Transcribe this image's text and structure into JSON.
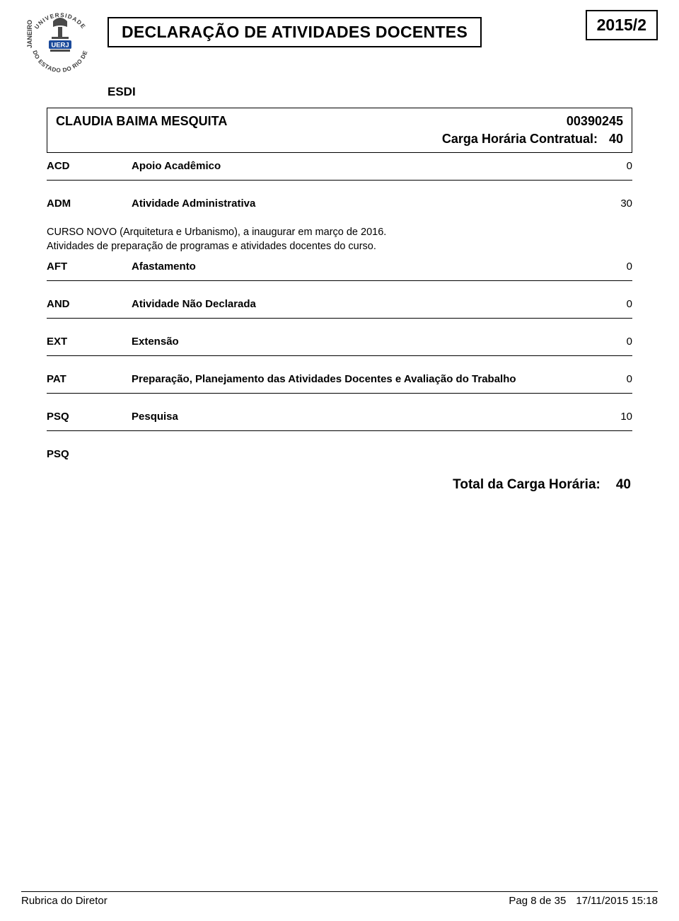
{
  "header": {
    "title": "DECLARAÇÃO DE ATIVIDADES DOCENTES",
    "period": "2015/2",
    "department": "ESDI",
    "logo_text_top": "UERJ",
    "logo_circ_text": "UNIVERSIDADE DO ESTADO DO RIO DE JANEIRO"
  },
  "person": {
    "name": "CLAUDIA BAIMA MESQUITA",
    "id": "00390245",
    "carga_label": "Carga Horária Contratual:",
    "carga_value": "40"
  },
  "categories": [
    {
      "code": "ACD",
      "label": "Apoio Acadêmico",
      "value": "0"
    },
    {
      "code": "ADM",
      "label": "Atividade Administrativa",
      "value": "30",
      "desc": "CURSO NOVO (Arquitetura e Urbanismo), a inaugurar em março de 2016.\nAtividades de preparação de programas e atividades docentes do curso.",
      "desc_below": true,
      "no_border": true
    },
    {
      "code": "AFT",
      "label": "Afastamento",
      "value": "0"
    },
    {
      "code": "AND",
      "label": "Atividade Não Declarada",
      "value": "0"
    },
    {
      "code": "EXT",
      "label": "Extensão",
      "value": "0"
    },
    {
      "code": "PAT",
      "label": "Preparação, Planejamento das Atividades Docentes e Avaliação do Trabalho",
      "value": "0"
    },
    {
      "code": "PSQ",
      "label": "Pesquisa",
      "value": "10"
    },
    {
      "code": "PSQ",
      "label": "",
      "value": "",
      "no_border": true
    }
  ],
  "total": {
    "label": "Total da Carga Horária:",
    "value": "40"
  },
  "footer": {
    "left": "Rubrica do Diretor",
    "page": "Pag  8 de 35",
    "timestamp": "17/11/2015 15:18"
  },
  "colors": {
    "text": "#000000",
    "bg": "#ffffff",
    "border": "#000000"
  }
}
